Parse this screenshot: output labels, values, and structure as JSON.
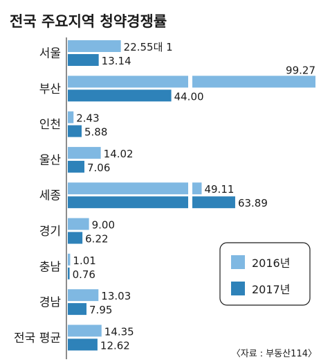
{
  "chart_data": {
    "type": "bar",
    "orientation": "horizontal",
    "title": "전국 주요지역 청약경쟁률",
    "categories": [
      "서울",
      "부산",
      "인천",
      "울산",
      "세종",
      "경기",
      "충남",
      "경남",
      "전국 평균"
    ],
    "series": [
      {
        "name": "2016년",
        "color": "#7fb8e2",
        "values": [
          22.55,
          99.27,
          2.43,
          14.02,
          49.11,
          9.0,
          1.01,
          13.03,
          14.35
        ],
        "labels": [
          "22.55대 1",
          "99.27",
          "2.43",
          "14.02",
          "49.11",
          "9.00",
          "1.01",
          "13.03",
          "14.35"
        ]
      },
      {
        "name": "2017년",
        "color": "#2e82b9",
        "values": [
          13.14,
          44.0,
          5.88,
          7.06,
          63.89,
          6.22,
          0.76,
          7.95,
          12.62
        ],
        "labels": [
          "13.14",
          "44.00",
          "5.88",
          "7.06",
          "63.89",
          "6.22",
          "0.76",
          "7.95",
          "12.62"
        ]
      }
    ],
    "legend": {
      "placement": "bottom-right"
    },
    "broken_axis": {
      "after_category_values_above": 45
    },
    "grid": false,
    "source": "〈자료 : 부동산114〉"
  }
}
